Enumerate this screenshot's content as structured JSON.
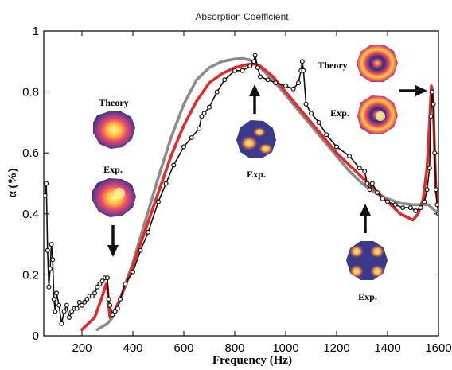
{
  "chart_data": {
    "type": "line",
    "title": "Absorption Coefficient",
    "xlabel": "Frequency (Hz)",
    "ylabel": "α (%)",
    "xlim": [
      50,
      1600
    ],
    "ylim": [
      0,
      1
    ],
    "grid": false,
    "legend": "none",
    "xticks": [
      {
        "value": 200,
        "label": "200"
      },
      {
        "value": 400,
        "label": "400"
      },
      {
        "value": 600,
        "label": "600"
      },
      {
        "value": 800,
        "label": "800"
      },
      {
        "value": 1000,
        "label": "1000"
      },
      {
        "value": 1200,
        "label": "1200"
      },
      {
        "value": 1400,
        "label": "1400"
      },
      {
        "value": 1600,
        "label": "1600"
      }
    ],
    "yticks": [
      {
        "value": 0,
        "label": "0"
      },
      {
        "value": 0.2,
        "label": "0.2"
      },
      {
        "value": 0.4,
        "label": "0.4"
      },
      {
        "value": 0.6,
        "label": "0.6"
      },
      {
        "value": 0.8,
        "label": "0.8"
      },
      {
        "value": 1,
        "label": "1"
      }
    ],
    "series": [
      {
        "color": "#8c8c8c",
        "style": "line",
        "x": [
          260,
          300,
          320,
          350,
          400,
          450,
          500,
          550,
          600,
          650,
          700,
          750,
          800,
          830,
          860,
          900,
          950,
          1000,
          1050,
          1100,
          1150,
          1200,
          1250,
          1300,
          1350,
          1400,
          1450,
          1500,
          1530,
          1560,
          1600
        ],
        "y": [
          0.02,
          0.04,
          0.06,
          0.12,
          0.24,
          0.38,
          0.52,
          0.65,
          0.76,
          0.84,
          0.88,
          0.9,
          0.908,
          0.91,
          0.905,
          0.88,
          0.84,
          0.79,
          0.74,
          0.69,
          0.64,
          0.59,
          0.54,
          0.5,
          0.47,
          0.45,
          0.435,
          0.43,
          0.43,
          0.43,
          0.4
        ]
      },
      {
        "color": "#e02b2b",
        "style": "line",
        "x": [
          200,
          250,
          280,
          295,
          300,
          305,
          310,
          320,
          350,
          400,
          450,
          500,
          550,
          600,
          650,
          700,
          750,
          800,
          850,
          880,
          900,
          950,
          1000,
          1050,
          1100,
          1150,
          1200,
          1250,
          1300,
          1350,
          1400,
          1450,
          1500,
          1520,
          1540,
          1555,
          1565,
          1572,
          1578,
          1585,
          1590,
          1600
        ],
        "y": [
          0.02,
          0.06,
          0.13,
          0.17,
          0.16,
          0.1,
          0.06,
          0.07,
          0.12,
          0.23,
          0.35,
          0.47,
          0.59,
          0.69,
          0.77,
          0.83,
          0.86,
          0.88,
          0.89,
          0.892,
          0.885,
          0.85,
          0.8,
          0.75,
          0.7,
          0.65,
          0.6,
          0.56,
          0.52,
          0.48,
          0.44,
          0.4,
          0.38,
          0.4,
          0.45,
          0.55,
          0.7,
          0.82,
          0.8,
          0.6,
          0.48,
          0.42
        ]
      },
      {
        "color": "#111111",
        "style": "markers",
        "x": [
          55,
          60,
          65,
          70,
          75,
          80,
          85,
          90,
          95,
          100,
          110,
          120,
          130,
          140,
          150,
          160,
          170,
          180,
          190,
          200,
          210,
          220,
          230,
          240,
          250,
          260,
          270,
          280,
          290,
          300,
          305,
          310,
          320,
          330,
          340,
          350,
          370,
          400,
          430,
          460,
          500,
          530,
          560,
          600,
          630,
          660,
          670,
          680,
          700,
          730,
          760,
          800,
          830,
          860,
          875,
          880,
          890,
          900,
          930,
          960,
          1000,
          1030,
          1050,
          1060,
          1065,
          1070,
          1080,
          1100,
          1130,
          1160,
          1200,
          1250,
          1290,
          1310,
          1320,
          1330,
          1340,
          1360,
          1380,
          1400,
          1430,
          1460,
          1490,
          1510,
          1530,
          1545,
          1555,
          1565,
          1570,
          1575,
          1580,
          1585,
          1590,
          1595,
          1600
        ],
        "y": [
          0.46,
          0.5,
          0.28,
          0.16,
          0.22,
          0.3,
          0.25,
          0.12,
          0.08,
          0.14,
          0.1,
          0.04,
          0.08,
          0.1,
          0.06,
          0.08,
          0.09,
          0.09,
          0.11,
          0.1,
          0.11,
          0.12,
          0.13,
          0.13,
          0.14,
          0.16,
          0.17,
          0.18,
          0.19,
          0.19,
          0.12,
          0.1,
          0.07,
          0.08,
          0.09,
          0.12,
          0.17,
          0.21,
          0.28,
          0.34,
          0.44,
          0.5,
          0.56,
          0.62,
          0.65,
          0.68,
          0.72,
          0.73,
          0.75,
          0.8,
          0.84,
          0.87,
          0.87,
          0.885,
          0.9,
          0.92,
          0.88,
          0.85,
          0.84,
          0.83,
          0.82,
          0.81,
          0.83,
          0.87,
          0.9,
          0.87,
          0.76,
          0.73,
          0.7,
          0.66,
          0.62,
          0.59,
          0.55,
          0.54,
          0.5,
          0.48,
          0.5,
          0.47,
          0.45,
          0.44,
          0.43,
          0.42,
          0.42,
          0.41,
          0.42,
          0.44,
          0.48,
          0.55,
          0.72,
          0.8,
          0.76,
          0.6,
          0.48,
          0.43,
          0.4
        ]
      }
    ],
    "annotations": [
      {
        "text": "Theory"
      },
      {
        "text": "Exp."
      },
      {
        "text": "Exp."
      },
      {
        "text": "Theory"
      },
      {
        "text": "Exp."
      },
      {
        "text": "Exp."
      }
    ]
  },
  "colors": {
    "theory_gray": "#8c8c8c",
    "theory_red": "#e02b2b",
    "experiment": "#111111",
    "mode_hot": "#ffe24a",
    "mode_mid": "#e8486a",
    "mode_cold": "#2a2f7a"
  }
}
